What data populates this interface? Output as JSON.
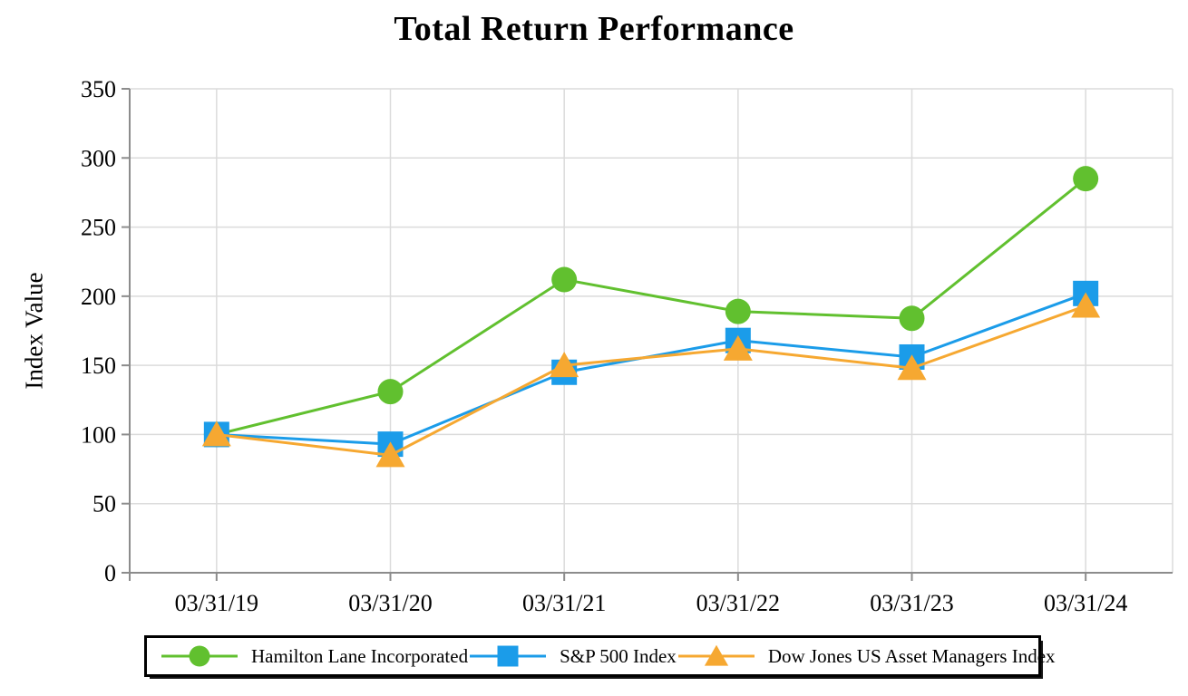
{
  "chart_data": {
    "type": "line",
    "title": "Total Return Performance",
    "xlabel": "",
    "ylabel": "Index Value",
    "categories": [
      "03/31/19",
      "03/31/20",
      "03/31/21",
      "03/31/22",
      "03/31/23",
      "03/31/24"
    ],
    "series": [
      {
        "name": "Hamilton Lane Incorporated",
        "marker": "circle",
        "color": "#61C02F",
        "values": [
          100,
          131,
          212,
          189,
          184,
          285
        ]
      },
      {
        "name": "S&P 500 Index",
        "marker": "square",
        "color": "#1B9CE9",
        "values": [
          100,
          93,
          145,
          168,
          156,
          202
        ]
      },
      {
        "name": "Dow Jones US Asset Managers Index",
        "marker": "triangle",
        "color": "#F6A831",
        "values": [
          100,
          85,
          150,
          162,
          148,
          193
        ]
      }
    ],
    "ylim": [
      0,
      350
    ],
    "y_ticks": [
      0,
      50,
      100,
      150,
      200,
      250,
      300,
      350
    ],
    "grid": true,
    "legend_position": "bottom",
    "grid_color": "#DBDBDB",
    "axis_color": "#8C8C8C",
    "text_color": "#000000"
  }
}
